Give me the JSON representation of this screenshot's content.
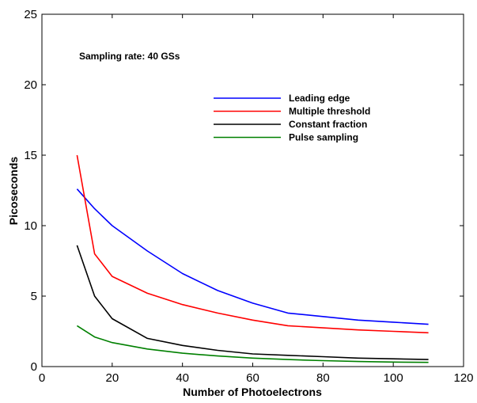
{
  "chart_data": {
    "type": "line",
    "title": "",
    "xlabel": "Number of Photoelectrons",
    "ylabel": "Picoseconds",
    "xlim": [
      0,
      120
    ],
    "ylim": [
      0,
      25
    ],
    "xticks": [
      "0",
      "20",
      "40",
      "60",
      "80",
      "100",
      "120"
    ],
    "yticks": [
      "0",
      "5",
      "10",
      "15",
      "20",
      "25"
    ],
    "grid": false,
    "legend_position": "upper-right",
    "annotation": "Sampling rate:  40 GSs",
    "series": [
      {
        "name": "Leading edge",
        "color": "#0000ff",
        "x": [
          10,
          15,
          20,
          30,
          40,
          50,
          60,
          70,
          80,
          90,
          100,
          110
        ],
        "y": [
          12.6,
          11.2,
          10.0,
          8.2,
          6.6,
          5.4,
          4.5,
          3.8,
          3.55,
          3.3,
          3.15,
          3.0
        ]
      },
      {
        "name": "Multiple threshold",
        "color": "#ff0000",
        "x": [
          10,
          15,
          20,
          30,
          40,
          50,
          60,
          70,
          80,
          90,
          100,
          110
        ],
        "y": [
          15.0,
          8.0,
          6.4,
          5.2,
          4.4,
          3.8,
          3.3,
          2.9,
          2.75,
          2.6,
          2.5,
          2.4
        ]
      },
      {
        "name": "Constant fraction",
        "color": "#000000",
        "x": [
          10,
          15,
          20,
          30,
          40,
          50,
          60,
          70,
          80,
          90,
          100,
          110
        ],
        "y": [
          8.6,
          5.0,
          3.4,
          2.0,
          1.5,
          1.15,
          0.9,
          0.8,
          0.7,
          0.6,
          0.55,
          0.5
        ]
      },
      {
        "name": "Pulse sampling",
        "color": "#008000",
        "x": [
          10,
          15,
          20,
          30,
          40,
          50,
          60,
          70,
          80,
          90,
          100,
          110
        ],
        "y": [
          2.9,
          2.1,
          1.7,
          1.25,
          0.95,
          0.75,
          0.6,
          0.5,
          0.42,
          0.36,
          0.32,
          0.3
        ]
      }
    ]
  }
}
